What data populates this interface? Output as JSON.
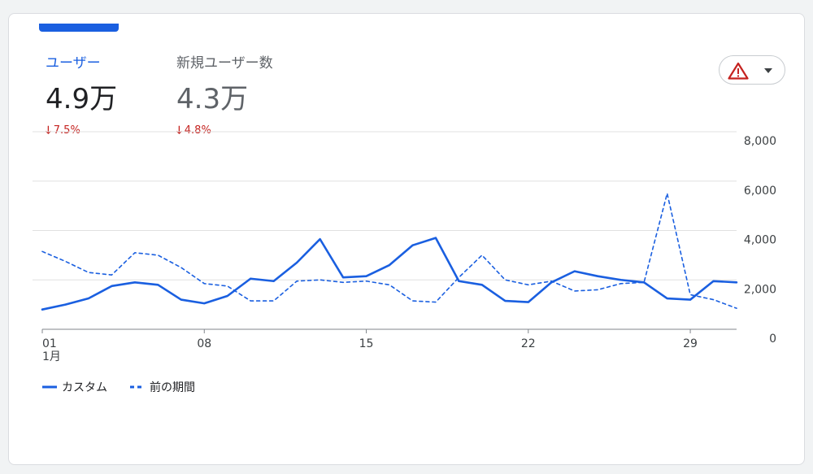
{
  "metrics": [
    {
      "label": "ユーザー",
      "value": "4.9万",
      "delta": "7.5%",
      "direction": "down"
    },
    {
      "label": "新規ユーザー数",
      "value": "4.3万",
      "delta": "4.8%",
      "direction": "down"
    }
  ],
  "alert_button": {
    "icon": "warning-triangle-icon",
    "dropdown_icon": "caret-down-icon"
  },
  "colors": {
    "accent": "#1a5fe0",
    "negative": "#c5221f",
    "warning": "#c5221f",
    "grid": "#e0e0e0"
  },
  "chart_data": {
    "type": "line",
    "x_tick_labels": [
      {
        "day": 1,
        "label": "01",
        "sublabel": "1月"
      },
      {
        "day": 8,
        "label": "08"
      },
      {
        "day": 15,
        "label": "15"
      },
      {
        "day": 22,
        "label": "22"
      },
      {
        "day": 29,
        "label": "29"
      }
    ],
    "y_ticks": [
      {
        "value": 8000,
        "label": "8,000"
      },
      {
        "value": 6000,
        "label": "6,000"
      },
      {
        "value": 4000,
        "label": "4,000"
      },
      {
        "value": 2000,
        "label": "2,000"
      },
      {
        "value": 0,
        "label": "0"
      }
    ],
    "ylim": [
      0,
      8000
    ],
    "xlim": [
      1,
      31
    ],
    "grid": true,
    "legend_position": "bottom-left",
    "x": [
      1,
      2,
      3,
      4,
      5,
      6,
      7,
      8,
      9,
      10,
      11,
      12,
      13,
      14,
      15,
      16,
      17,
      18,
      19,
      20,
      21,
      22,
      23,
      24,
      25,
      26,
      27,
      28,
      29,
      30,
      31
    ],
    "series": [
      {
        "name": "カスタム",
        "style": "solid",
        "color": "#1a5fe0",
        "values": [
          800,
          1000,
          1250,
          1750,
          1900,
          1800,
          1200,
          1050,
          1350,
          2050,
          1950,
          2700,
          3650,
          2100,
          2150,
          2600,
          3400,
          3700,
          1950,
          1800,
          1150,
          1100,
          1900,
          2350,
          2150,
          2000,
          1900,
          1250,
          1200,
          1950,
          1900
        ]
      },
      {
        "name": "前の期間",
        "style": "dashed",
        "color": "#1a5fe0",
        "values": [
          3150,
          2750,
          2300,
          2200,
          3100,
          3000,
          2500,
          1850,
          1750,
          1150,
          1150,
          1950,
          2000,
          1900,
          1950,
          1800,
          1150,
          1100,
          2100,
          3000,
          2000,
          1800,
          1950,
          1550,
          1600,
          1850,
          1900,
          5500,
          1400,
          1200,
          850
        ]
      }
    ]
  }
}
